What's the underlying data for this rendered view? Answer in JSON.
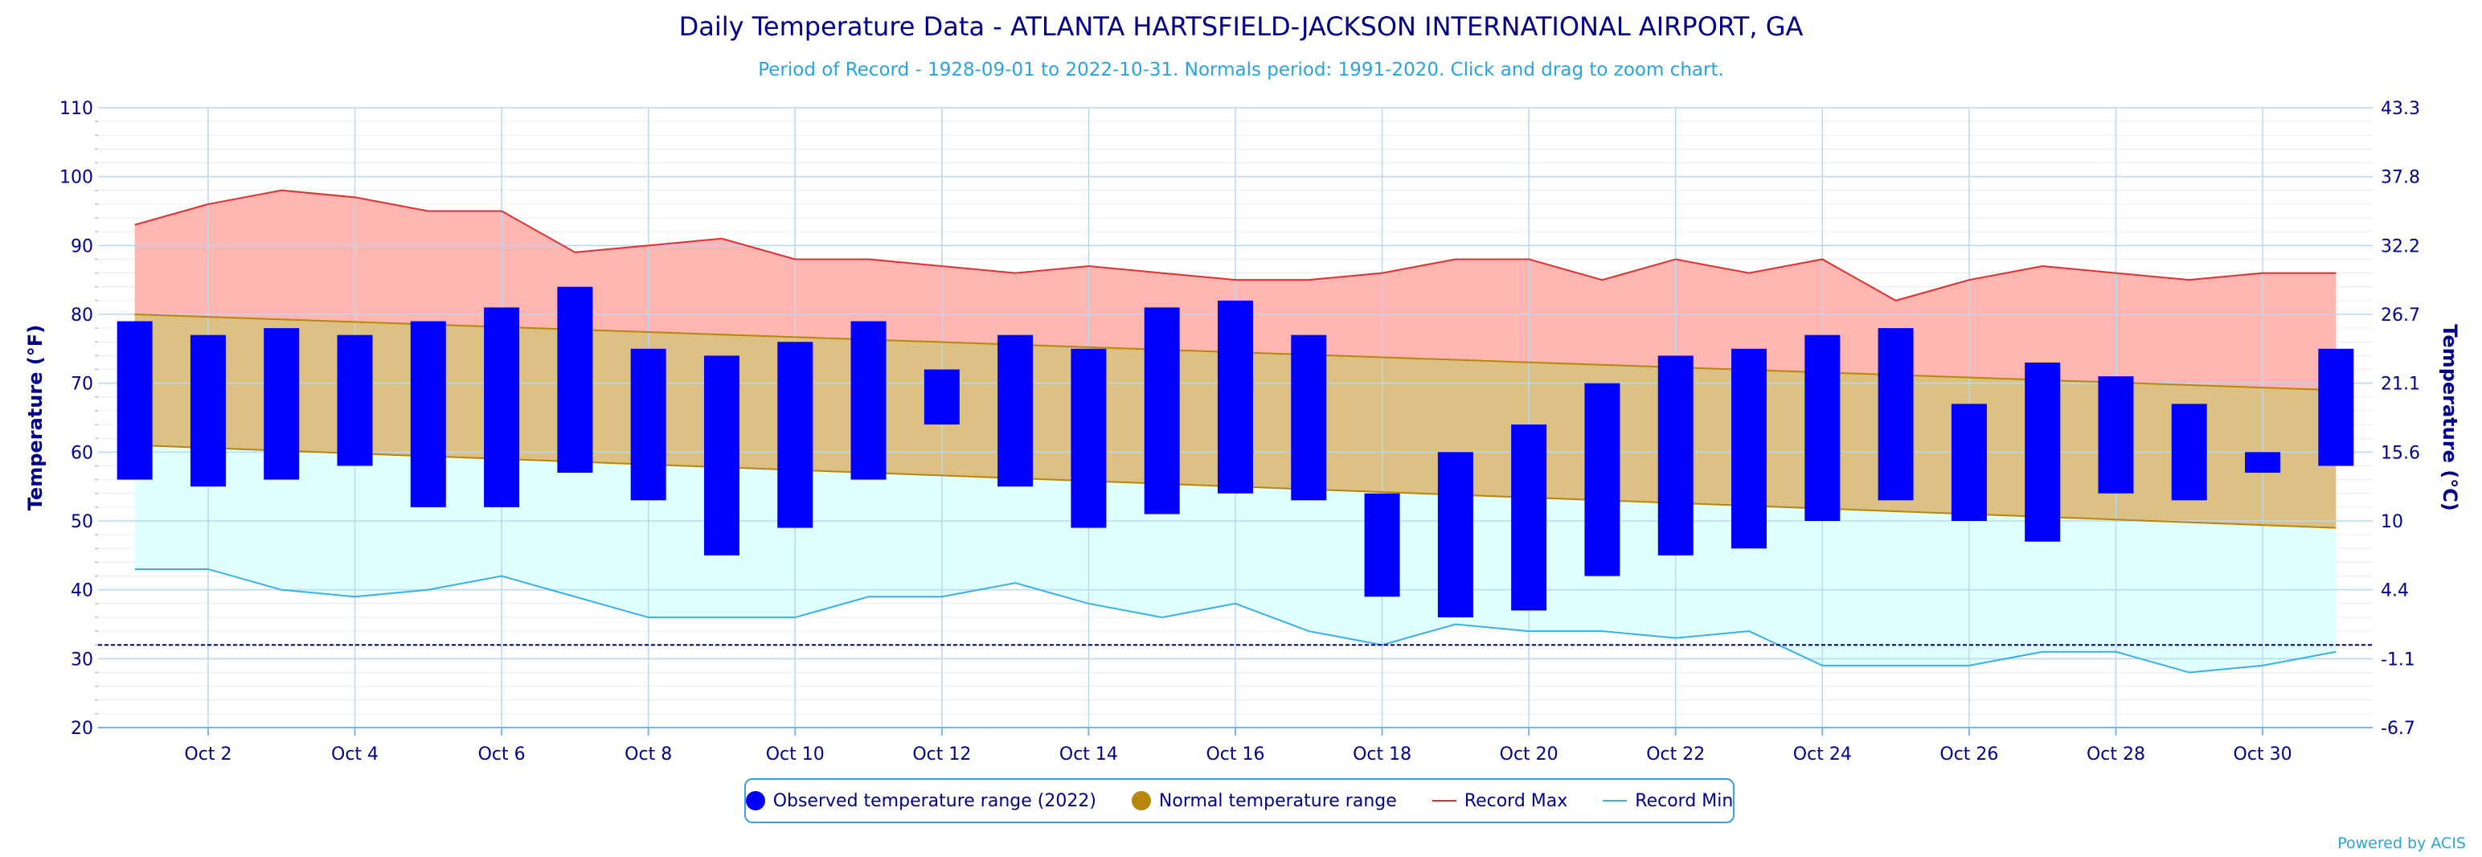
{
  "title": "Daily Temperature Data - ATLANTA HARTSFIELD-JACKSON INTERNATIONAL AIRPORT, GA",
  "subtitle": "Period of Record - 1928-09-01 to 2022-10-31. Normals period: 1991-2020. Click and drag to zoom chart.",
  "credit": "Powered by ACIS",
  "legend": {
    "observed": "Observed temperature range (2022)",
    "normal": "Normal temperature range",
    "record_max": "Record Max",
    "record_min": "Record Min"
  },
  "colors": {
    "observed": "#0000ff",
    "normal_fill": "#dcc084",
    "normal_edge": "#b8860b",
    "record_max_fill": "#ffb6b0",
    "record_max_line": "#e03030",
    "record_min_fill": "#e0ffff",
    "record_min_line": "#3ab0e8",
    "axis_text": "#00008b",
    "freezing_line": "#00008b"
  },
  "chart_data": {
    "type": "bar",
    "xlabel": "",
    "ylabel": "Temperature (°F)",
    "y2label": "Temperature (°C)",
    "ylim": [
      20,
      110
    ],
    "yticks": [
      20,
      30,
      40,
      50,
      60,
      70,
      80,
      90,
      100,
      110
    ],
    "y2ticks": [
      "-6.7",
      "-1.1",
      "4.4",
      "10",
      "15.6",
      "21.1",
      "26.7",
      "32.2",
      "37.8",
      "43.3"
    ],
    "x_tick_labels": [
      "Oct 2",
      "Oct 4",
      "Oct 6",
      "Oct 8",
      "Oct 10",
      "Oct 12",
      "Oct 14",
      "Oct 16",
      "Oct 18",
      "Oct 20",
      "Oct 22",
      "Oct 24",
      "Oct 26",
      "Oct 28",
      "Oct 30"
    ],
    "days": [
      1,
      2,
      3,
      4,
      5,
      6,
      7,
      8,
      9,
      10,
      11,
      12,
      13,
      14,
      15,
      16,
      17,
      18,
      19,
      20,
      21,
      22,
      23,
      24,
      25,
      26,
      27,
      28,
      29,
      30,
      31
    ],
    "observed_max": [
      79,
      77,
      78,
      77,
      79,
      81,
      84,
      75,
      74,
      76,
      79,
      72,
      77,
      75,
      81,
      82,
      77,
      54,
      60,
      64,
      70,
      74,
      75,
      77,
      78,
      67,
      73,
      71,
      67,
      60,
      75
    ],
    "observed_min": [
      56,
      55,
      56,
      58,
      52,
      52,
      57,
      53,
      45,
      49,
      56,
      64,
      55,
      49,
      51,
      54,
      53,
      39,
      36,
      37,
      42,
      45,
      46,
      50,
      53,
      50,
      47,
      54,
      53,
      57,
      58
    ],
    "normal_max_start": 80,
    "normal_max_end": 69,
    "normal_min_start": 61,
    "normal_min_end": 49,
    "record_max": [
      93,
      96,
      98,
      97,
      95,
      95,
      89,
      90,
      91,
      88,
      88,
      87,
      86,
      87,
      86,
      85,
      85,
      86,
      88,
      88,
      85,
      88,
      86,
      88,
      82,
      85,
      87,
      86,
      85,
      86,
      86
    ],
    "record_min": [
      43,
      43,
      40,
      39,
      40,
      42,
      39,
      36,
      36,
      36,
      39,
      39,
      41,
      38,
      36,
      38,
      34,
      32,
      35,
      34,
      34,
      33,
      34,
      29,
      29,
      29,
      31,
      31,
      28,
      29,
      31
    ],
    "freezing": 32,
    "grid": true
  }
}
